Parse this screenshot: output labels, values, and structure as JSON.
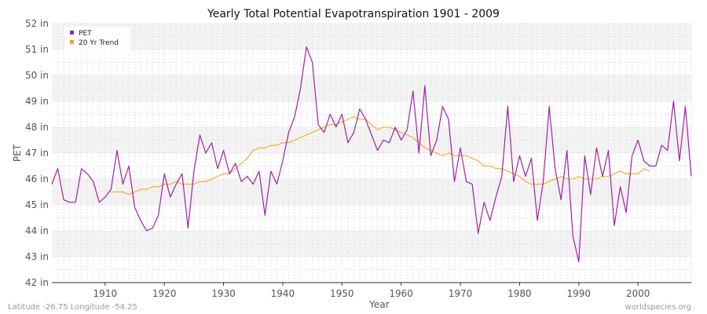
{
  "chart_data": {
    "type": "line",
    "title": "Yearly Total Potential Evapotranspiration 1901 - 2009",
    "xlabel": "Year",
    "ylabel": "PET",
    "xlim": [
      1901,
      2009
    ],
    "ylim": [
      42,
      52
    ],
    "x_ticks": [
      1910,
      1920,
      1930,
      1940,
      1950,
      1960,
      1970,
      1980,
      1990,
      2000
    ],
    "y_ticks": [
      {
        "value": 42,
        "label": "42 in"
      },
      {
        "value": 43,
        "label": "43 in"
      },
      {
        "value": 44,
        "label": "44 in"
      },
      {
        "value": 45,
        "label": "45 in"
      },
      {
        "value": 46,
        "label": "46 in"
      },
      {
        "value": 47,
        "label": "47 in"
      },
      {
        "value": 48,
        "label": "48 in"
      },
      {
        "value": 49,
        "label": "49 in"
      },
      {
        "value": 50,
        "label": "50 in"
      },
      {
        "value": 51,
        "label": "51 in"
      },
      {
        "value": 52,
        "label": "52 in"
      }
    ],
    "legend_position": "top-left",
    "series": [
      {
        "name": "PET",
        "color": "#a020a8",
        "x_start": 1901,
        "values": [
          45.8,
          46.4,
          45.2,
          45.1,
          45.1,
          46.4,
          46.2,
          45.9,
          45.1,
          45.3,
          45.6,
          47.1,
          45.8,
          46.5,
          44.9,
          44.4,
          44.0,
          44.1,
          44.6,
          46.2,
          45.3,
          45.8,
          46.2,
          44.1,
          46.3,
          47.7,
          47.0,
          47.4,
          46.4,
          47.1,
          46.2,
          46.6,
          45.9,
          46.1,
          45.8,
          46.3,
          44.6,
          46.3,
          45.8,
          46.7,
          47.8,
          48.4,
          49.5,
          51.1,
          50.5,
          48.1,
          47.8,
          48.5,
          48.0,
          48.5,
          47.4,
          47.8,
          48.7,
          48.3,
          47.7,
          47.1,
          47.5,
          47.4,
          48.0,
          47.5,
          47.9,
          49.4,
          47.0,
          49.6,
          46.9,
          47.5,
          48.8,
          48.3,
          45.9,
          47.2,
          45.9,
          45.8,
          43.9,
          45.1,
          44.4,
          45.3,
          46.1,
          48.8,
          45.9,
          46.9,
          46.1,
          46.8,
          44.4,
          45.9,
          48.8,
          46.4,
          45.2,
          47.1,
          43.8,
          42.8,
          46.9,
          45.4,
          47.2,
          46.1,
          47.1,
          44.2,
          45.7,
          44.7,
          46.9,
          47.5,
          46.7,
          46.5,
          46.5,
          47.3,
          47.1,
          49.0,
          46.7,
          48.8,
          46.1
        ]
      },
      {
        "name": "20 Yr Trend",
        "color": "#f5a623",
        "x_start": 1911,
        "values": [
          45.5,
          45.5,
          45.5,
          45.4,
          45.5,
          45.6,
          45.6,
          45.7,
          45.7,
          45.8,
          45.8,
          45.9,
          45.8,
          45.8,
          45.8,
          45.9,
          45.9,
          46.0,
          46.1,
          46.2,
          46.2,
          46.4,
          46.6,
          46.8,
          47.1,
          47.2,
          47.2,
          47.3,
          47.3,
          47.4,
          47.4,
          47.5,
          47.6,
          47.7,
          47.8,
          47.9,
          48.0,
          48.1,
          48.1,
          48.2,
          48.3,
          48.4,
          48.3,
          48.3,
          48.1,
          47.9,
          48.0,
          48.0,
          47.9,
          47.8,
          47.7,
          47.6,
          47.4,
          47.2,
          47.1,
          47.0,
          46.9,
          47.0,
          46.9,
          46.9,
          46.9,
          46.8,
          46.7,
          46.5,
          46.5,
          46.4,
          46.4,
          46.3,
          46.2,
          46.1,
          45.9,
          45.8,
          45.8,
          45.8,
          45.9,
          46.0,
          46.1,
          46.0,
          46.0,
          46.1,
          46.0,
          46.0,
          46.0,
          46.1,
          46.1,
          46.2,
          46.3,
          46.2,
          46.2,
          46.2,
          46.4,
          46.3
        ]
      }
    ]
  },
  "footer": {
    "location": "Latitude -26.75 Longitude -54.25",
    "source": "worldspecies.org"
  }
}
